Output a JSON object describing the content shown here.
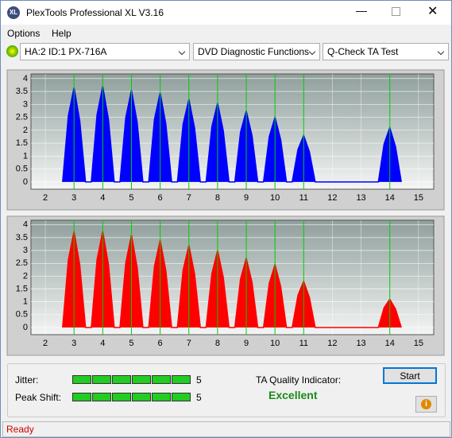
{
  "window": {
    "title": "PlexTools Professional XL V3.16",
    "logo": "XL",
    "status": "Ready"
  },
  "menu": [
    "Options",
    "Help"
  ],
  "toolbar": {
    "drive": "HA:2 ID:1  PX-716A",
    "function": "DVD Diagnostic Functions",
    "test": "Q-Check TA Test"
  },
  "chart_data": [
    {
      "type": "area",
      "color": "#0000ff",
      "marker_color": "#00cc00",
      "x": [
        2.6,
        2.8,
        3,
        3.2,
        3.4,
        3.6,
        3.8,
        4,
        4.2,
        4.4,
        4.6,
        4.8,
        5,
        5.2,
        5.4,
        5.6,
        5.8,
        6,
        6.2,
        6.4,
        6.6,
        6.8,
        7,
        7.2,
        7.4,
        7.6,
        7.8,
        8,
        8.2,
        8.4,
        8.6,
        8.8,
        9,
        9.2,
        9.4,
        9.6,
        9.8,
        10,
        10.2,
        10.4,
        10.6,
        10.8,
        11,
        11.2,
        11.4,
        13.6,
        13.8,
        14,
        14.2,
        14.4
      ],
      "values": [
        0,
        2.56,
        3.65,
        2.37,
        0,
        0,
        2.59,
        3.7,
        2.41,
        0,
        0,
        2.49,
        3.55,
        2.31,
        0,
        0,
        2.42,
        3.45,
        2.24,
        0,
        0,
        2.24,
        3.2,
        2.08,
        0,
        0,
        2.14,
        3.05,
        1.98,
        0,
        0,
        1.93,
        2.75,
        1.79,
        0,
        0,
        1.75,
        2.5,
        1.63,
        0,
        0,
        1.26,
        1.8,
        1.17,
        0,
        0,
        1.47,
        2.1,
        1.37,
        0
      ],
      "markers": [
        3,
        4,
        5,
        6,
        7,
        8,
        9,
        10,
        11,
        14
      ],
      "xlim": [
        1.5,
        15.53
      ],
      "xticks": [
        2,
        3,
        4,
        5,
        6,
        7,
        8,
        9,
        10,
        11,
        12,
        13,
        14,
        15
      ],
      "ylim": [
        -0.28,
        4.18
      ],
      "yticks": [
        0,
        0.5,
        1,
        1.5,
        2,
        2.5,
        3,
        3.5,
        4
      ],
      "grid": true
    },
    {
      "type": "area",
      "color": "#ff0000",
      "marker_color": "#00cc00",
      "x": [
        2.6,
        2.8,
        3,
        3.2,
        3.4,
        3.6,
        3.8,
        4,
        4.2,
        4.4,
        4.6,
        4.8,
        5,
        5.2,
        5.4,
        5.6,
        5.8,
        6,
        6.2,
        6.4,
        6.6,
        6.8,
        7,
        7.2,
        7.4,
        7.6,
        7.8,
        8,
        8.2,
        8.4,
        8.6,
        8.8,
        9,
        9.2,
        9.4,
        9.6,
        9.8,
        10,
        10.2,
        10.4,
        10.6,
        10.8,
        11,
        11.2,
        11.4,
        13.6,
        13.8,
        14,
        14.2,
        14.4
      ],
      "values": [
        0,
        2.63,
        3.75,
        2.44,
        0,
        0,
        2.63,
        3.75,
        2.44,
        0,
        0,
        2.52,
        3.6,
        2.34,
        0,
        0,
        2.38,
        3.4,
        2.21,
        0,
        0,
        2.24,
        3.2,
        2.08,
        0,
        0,
        2.1,
        3.0,
        1.95,
        0,
        0,
        1.89,
        2.7,
        1.76,
        0,
        0,
        1.72,
        2.45,
        1.59,
        0,
        0,
        1.26,
        1.8,
        1.17,
        0,
        0,
        0.77,
        1.1,
        0.72,
        0
      ],
      "markers": [
        3,
        4,
        5,
        6,
        7,
        8,
        9,
        10,
        11,
        14
      ],
      "xlim": [
        1.5,
        15.53
      ],
      "xticks": [
        2,
        3,
        4,
        5,
        6,
        7,
        8,
        9,
        10,
        11,
        12,
        13,
        14,
        15
      ],
      "ylim": [
        -0.28,
        4.18
      ],
      "yticks": [
        0,
        0.5,
        1,
        1.5,
        2,
        2.5,
        3,
        3.5,
        4
      ],
      "grid": true
    }
  ],
  "results": {
    "jitter_label": "Jitter:",
    "jitter": 5,
    "peak_shift_label": "Peak Shift:",
    "peak_shift": 5,
    "ta_label": "TA Quality Indicator:",
    "ta_value": "Excellent",
    "start": "Start"
  }
}
